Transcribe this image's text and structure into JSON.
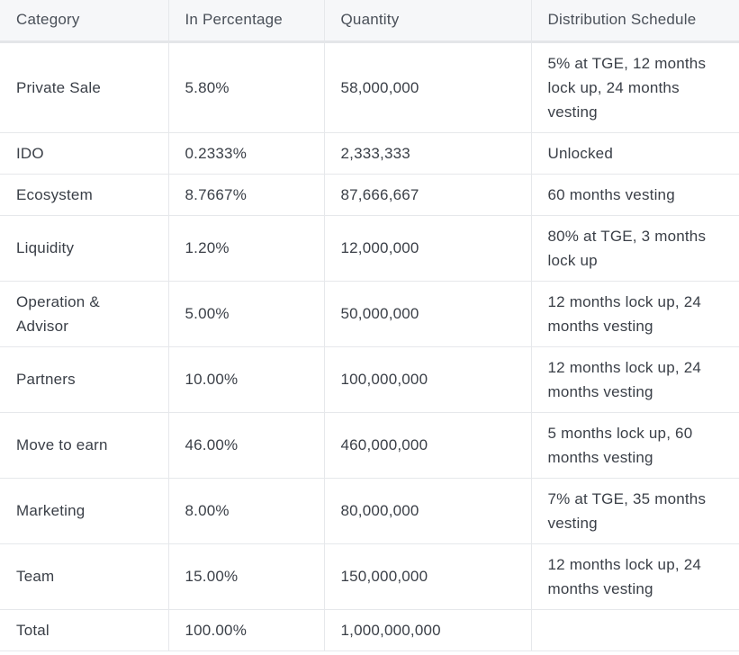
{
  "table": {
    "headers": [
      "Category",
      "In Percentage",
      "Quantity",
      "Distribution Schedule"
    ],
    "rows": [
      {
        "category": "Private Sale",
        "percentage": "5.80%",
        "quantity": "58,000,000",
        "schedule": "5% at TGE, 12 months lock up, 24 months vesting"
      },
      {
        "category": "IDO",
        "percentage": "0.2333%",
        "quantity": "2,333,333",
        "schedule": "Unlocked"
      },
      {
        "category": "Ecosystem",
        "percentage": "8.7667%",
        "quantity": "87,666,667",
        "schedule": "60 months vesting"
      },
      {
        "category": "Liquidity",
        "percentage": "1.20%",
        "quantity": "12,000,000",
        "schedule": "80% at TGE, 3 months lock up"
      },
      {
        "category": "Operation & Advisor",
        "percentage": "5.00%",
        "quantity": "50,000,000",
        "schedule": "12 months lock up, 24 months vesting"
      },
      {
        "category": "Partners",
        "percentage": "10.00%",
        "quantity": "100,000,000",
        "schedule": "12 months lock up, 24 months vesting"
      },
      {
        "category": "Move to earn",
        "percentage": "46.00%",
        "quantity": "460,000,000",
        "schedule": "5 months lock up, 60 months vesting"
      },
      {
        "category": "Marketing",
        "percentage": "8.00%",
        "quantity": "80,000,000",
        "schedule": "7% at TGE, 35 months vesting"
      },
      {
        "category": "Team",
        "percentage": "15.00%",
        "quantity": "150,000,000",
        "schedule": "12 months lock up, 24 months vesting"
      },
      {
        "category": "Total",
        "percentage": "100.00%",
        "quantity": "1,000,000,000",
        "schedule": ""
      }
    ]
  }
}
